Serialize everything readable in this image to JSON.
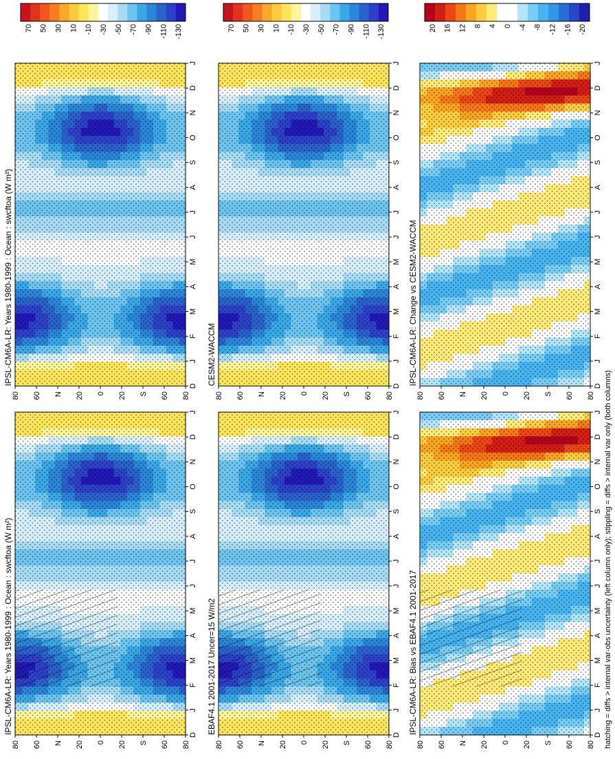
{
  "figure": {
    "footnote": "hatching = diffs > internal var-obs uncertainty (left column only); stippling = diffs > internal var only (both columns)",
    "colors": {
      "abs_scale": [
        "#c8141c",
        "#e1321e",
        "#f0561e",
        "#f57f1e",
        "#f9a728",
        "#fbcb3c",
        "#fde65a",
        "#fdf59a",
        "#ffffff",
        "#d7effb",
        "#a8dcf5",
        "#6cc5f0",
        "#3aa8e6",
        "#2a86d8",
        "#2a62cc",
        "#2d40c8",
        "#2218b8"
      ],
      "diff_scale": [
        "#b4001e",
        "#d21e14",
        "#eb4614",
        "#f57814",
        "#faa51e",
        "#fccd3c",
        "#feeb78",
        "#ffffff",
        "#ffffff",
        "#b4e6fa",
        "#78cdf5",
        "#46b4f0",
        "#2d96e6",
        "#286ed7",
        "#2846c8",
        "#1e1eb4"
      ]
    },
    "panels": [
      {
        "id": "p1",
        "title": "IPSL-CM6A-LR: Years 1980-1999 : Ocean : swcftoa (W m²)",
        "kind": "abs",
        "hatch": true
      },
      {
        "id": "p2",
        "title": "IPSL-CM6A-LR: Years 1980-1999 : Ocean : swcftoa (W m²)",
        "kind": "abs",
        "hatch": false
      },
      {
        "id": "p3",
        "title": "EBAF4.1 2001-2017 Uncer=15 W/m2",
        "kind": "abs",
        "hatch": true
      },
      {
        "id": "p4",
        "title": "CESM2-WACCM",
        "kind": "abs",
        "hatch": false
      },
      {
        "id": "p5",
        "title": "IPSL-CM6A-LR: Bias vs EBAF4.1 2001-2017",
        "kind": "diff",
        "hatch": true
      },
      {
        "id": "p6",
        "title": "IPSL-CM6A-LR: Change vs CESM2-WACCM",
        "kind": "diff",
        "hatch": false
      }
    ],
    "lat_ticks": [
      "80",
      "60",
      "N",
      "20",
      "0",
      "20",
      "S",
      "60",
      "80"
    ],
    "month_ticks": [
      "D",
      "J",
      "F",
      "M",
      "A",
      "M",
      "J",
      "J",
      "A",
      "S",
      "O",
      "N",
      "D",
      "J"
    ],
    "abs_ticks": [
      "70",
      "50",
      "30",
      "10",
      "-10",
      "-30",
      "-50",
      "-70",
      "-90",
      "-110",
      "-130"
    ],
    "diff_ticks": [
      "20",
      "16",
      "12",
      "8",
      "4",
      "0",
      "-4",
      "-8",
      "-12",
      "-16",
      "-20"
    ]
  },
  "chart_data": [
    {
      "type": "heatmap",
      "title": "IPSL-CM6A-LR: Years 1980-1999 : Ocean : swcftoa (W m²)",
      "x": [
        "D",
        "J",
        "F",
        "M",
        "A",
        "M",
        "J",
        "J",
        "A",
        "S",
        "O",
        "N",
        "D",
        "J"
      ],
      "y": [
        "80N",
        "60N",
        "40N",
        "20N",
        "0",
        "20S",
        "40S",
        "60S",
        "80S"
      ],
      "colorbar_ticks": [
        70,
        50,
        30,
        10,
        -10,
        -30,
        -50,
        -70,
        -90,
        -110,
        -130
      ]
    },
    {
      "type": "heatmap",
      "title": "IPSL-CM6A-LR: Years 1980-1999 : Ocean : swcftoa (W m²)",
      "x": [
        "D",
        "J",
        "F",
        "M",
        "A",
        "M",
        "J",
        "J",
        "A",
        "S",
        "O",
        "N",
        "D",
        "J"
      ],
      "y": [
        "80N",
        "60N",
        "40N",
        "20N",
        "0",
        "20S",
        "40S",
        "60S",
        "80S"
      ],
      "colorbar_ticks": [
        70,
        50,
        30,
        10,
        -10,
        -30,
        -50,
        -70,
        -90,
        -110,
        -130
      ]
    },
    {
      "type": "heatmap",
      "title": "EBAF4.1 2001-2017 Uncer=15 W/m2",
      "x": [
        "D",
        "J",
        "F",
        "M",
        "A",
        "M",
        "J",
        "J",
        "A",
        "S",
        "O",
        "N",
        "D",
        "J"
      ],
      "y": [
        "80N",
        "60N",
        "40N",
        "20N",
        "0",
        "20S",
        "40S",
        "60S",
        "80S"
      ],
      "colorbar_ticks": [
        70,
        50,
        30,
        10,
        -10,
        -30,
        -50,
        -70,
        -90,
        -110,
        -130
      ]
    },
    {
      "type": "heatmap",
      "title": "CESM2-WACCM",
      "x": [
        "D",
        "J",
        "F",
        "M",
        "A",
        "M",
        "J",
        "J",
        "A",
        "S",
        "O",
        "N",
        "D",
        "J"
      ],
      "y": [
        "80N",
        "60N",
        "40N",
        "20N",
        "0",
        "20S",
        "40S",
        "60S",
        "80S"
      ],
      "colorbar_ticks": [
        70,
        50,
        30,
        10,
        -10,
        -30,
        -50,
        -70,
        -90,
        -110,
        -130
      ]
    },
    {
      "type": "heatmap",
      "title": "IPSL-CM6A-LR: Bias vs EBAF4.1 2001-2017",
      "x": [
        "D",
        "J",
        "F",
        "M",
        "A",
        "M",
        "J",
        "J",
        "A",
        "S",
        "O",
        "N",
        "D",
        "J"
      ],
      "y": [
        "80N",
        "60N",
        "40N",
        "20N",
        "0",
        "20S",
        "40S",
        "60S",
        "80S"
      ],
      "colorbar_ticks": [
        20,
        16,
        12,
        8,
        4,
        0,
        -4,
        -8,
        -12,
        -16,
        -20
      ]
    },
    {
      "type": "heatmap",
      "title": "IPSL-CM6A-LR: Change vs CESM2-WACCM",
      "x": [
        "D",
        "J",
        "F",
        "M",
        "A",
        "M",
        "J",
        "J",
        "A",
        "S",
        "O",
        "N",
        "D",
        "J"
      ],
      "y": [
        "80N",
        "60N",
        "40N",
        "20N",
        "0",
        "20S",
        "40S",
        "60S",
        "80S"
      ],
      "colorbar_ticks": [
        20,
        16,
        12,
        8,
        4,
        0,
        -4,
        -8,
        -12,
        -16,
        -20
      ]
    }
  ]
}
